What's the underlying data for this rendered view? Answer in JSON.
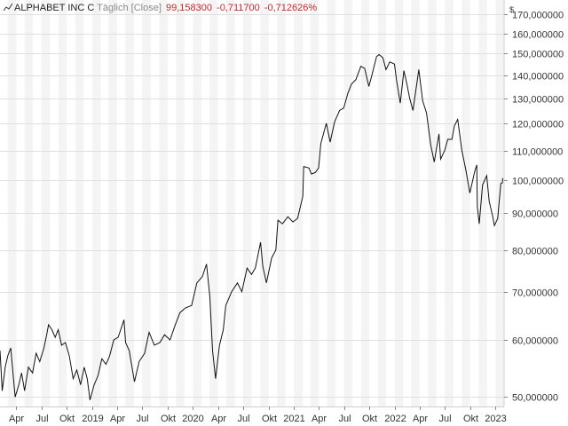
{
  "legend": {
    "instrument": "ALPHABET INC C",
    "frequency": "Täglich [Close]",
    "last_value": "99,158300",
    "change_abs": "-0,711700",
    "change_pct": "-0,712626%",
    "icon": "line-chart-icon"
  },
  "colors": {
    "line": "#111111",
    "band": "#f4f4f4",
    "grid": "#e0e0e0",
    "axis_text": "#333333",
    "value_red": "#c62828"
  },
  "chart_data": {
    "type": "line",
    "title": "",
    "xlabel": "",
    "ylabel": "$",
    "y_scale": "log",
    "ylim": [
      48.5,
      178
    ],
    "xlim": [
      "2018-02-01",
      "2023-02-01"
    ],
    "grid": true,
    "legend_position": "top-left",
    "y_ticks": [
      50,
      60,
      70,
      80,
      90,
      100,
      110,
      120,
      130,
      140,
      150,
      160,
      170
    ],
    "y_tick_labels": [
      "50,000000",
      "60,000000",
      "70,000000",
      "80,000000",
      "90,000000",
      "100,000000",
      "110,000000",
      "120,000000",
      "130,000000",
      "140,000000",
      "150,000000",
      "160,000000",
      "170,000000"
    ],
    "x_ticks": [
      {
        "date": "2018-04-01",
        "label": "Apr"
      },
      {
        "date": "2018-07-01",
        "label": "Jul"
      },
      {
        "date": "2018-10-01",
        "label": "Okt"
      },
      {
        "date": "2019-01-01",
        "label": "2019"
      },
      {
        "date": "2019-04-01",
        "label": "Apr"
      },
      {
        "date": "2019-07-01",
        "label": "Jul"
      },
      {
        "date": "2019-10-01",
        "label": "Okt"
      },
      {
        "date": "2020-01-01",
        "label": "2020"
      },
      {
        "date": "2020-04-01",
        "label": "Apr"
      },
      {
        "date": "2020-07-01",
        "label": "Jul"
      },
      {
        "date": "2020-10-01",
        "label": "Okt"
      },
      {
        "date": "2021-01-01",
        "label": "2021"
      },
      {
        "date": "2021-04-01",
        "label": "Apr"
      },
      {
        "date": "2021-07-01",
        "label": "Jul"
      },
      {
        "date": "2021-10-01",
        "label": "Okt"
      },
      {
        "date": "2022-01-01",
        "label": "2022"
      },
      {
        "date": "2022-04-01",
        "label": "Apr"
      },
      {
        "date": "2022-07-01",
        "label": "Jul"
      },
      {
        "date": "2022-10-01",
        "label": "Okt"
      },
      {
        "date": "2023-01-01",
        "label": "2023"
      }
    ],
    "shaded_months": [
      "2018-03",
      "2018-05",
      "2018-07",
      "2018-09",
      "2018-11",
      "2019-01",
      "2019-03",
      "2019-05",
      "2019-07",
      "2019-09",
      "2019-11",
      "2020-01",
      "2020-03",
      "2020-05",
      "2020-07",
      "2020-09",
      "2020-11",
      "2021-01",
      "2021-03",
      "2021-05",
      "2021-07",
      "2021-09",
      "2021-11",
      "2022-01",
      "2022-03",
      "2022-05",
      "2022-07",
      "2022-09",
      "2022-11",
      "2023-01"
    ],
    "series": [
      {
        "values": [
          [
            "2018-02-01",
            58.0
          ],
          [
            "2018-02-09",
            51.0
          ],
          [
            "2018-02-20",
            55.0
          ],
          [
            "2018-03-01",
            57.0
          ],
          [
            "2018-03-12",
            58.5
          ],
          [
            "2018-03-20",
            54.0
          ],
          [
            "2018-03-28",
            50.0
          ],
          [
            "2018-04-10",
            52.0
          ],
          [
            "2018-04-20",
            54.0
          ],
          [
            "2018-05-01",
            51.0
          ],
          [
            "2018-05-15",
            55.0
          ],
          [
            "2018-05-30",
            54.0
          ],
          [
            "2018-06-12",
            57.5
          ],
          [
            "2018-06-25",
            56.0
          ],
          [
            "2018-07-10",
            58.5
          ],
          [
            "2018-07-20",
            61.0
          ],
          [
            "2018-07-27",
            63.0
          ],
          [
            "2018-08-08",
            62.0
          ],
          [
            "2018-08-20",
            60.5
          ],
          [
            "2018-08-31",
            62.0
          ],
          [
            "2018-09-12",
            59.0
          ],
          [
            "2018-09-26",
            59.5
          ],
          [
            "2018-10-10",
            57.0
          ],
          [
            "2018-10-24",
            53.0
          ],
          [
            "2018-11-06",
            54.5
          ],
          [
            "2018-11-20",
            52.0
          ],
          [
            "2018-12-03",
            55.0
          ],
          [
            "2018-12-14",
            53.0
          ],
          [
            "2018-12-24",
            49.5
          ],
          [
            "2019-01-08",
            52.0
          ],
          [
            "2019-01-22",
            53.5
          ],
          [
            "2019-02-05",
            56.5
          ],
          [
            "2019-02-20",
            55.5
          ],
          [
            "2019-03-05",
            57.0
          ],
          [
            "2019-03-20",
            60.0
          ],
          [
            "2019-04-05",
            60.5
          ],
          [
            "2019-04-26",
            64.0
          ],
          [
            "2019-05-02",
            59.5
          ],
          [
            "2019-05-15",
            58.0
          ],
          [
            "2019-06-03",
            52.5
          ],
          [
            "2019-06-20",
            56.0
          ],
          [
            "2019-07-10",
            57.5
          ],
          [
            "2019-07-26",
            61.5
          ],
          [
            "2019-08-14",
            59.0
          ],
          [
            "2019-09-03",
            59.5
          ],
          [
            "2019-09-20",
            61.0
          ],
          [
            "2019-10-10",
            60.0
          ],
          [
            "2019-10-29",
            63.0
          ],
          [
            "2019-11-15",
            65.5
          ],
          [
            "2019-12-06",
            66.5
          ],
          [
            "2019-12-27",
            67.0
          ],
          [
            "2020-01-15",
            72.0
          ],
          [
            "2020-02-04",
            73.5
          ],
          [
            "2020-02-19",
            76.5
          ],
          [
            "2020-03-02",
            69.0
          ],
          [
            "2020-03-12",
            58.0
          ],
          [
            "2020-03-23",
            53.0
          ],
          [
            "2020-04-06",
            59.0
          ],
          [
            "2020-04-20",
            62.0
          ],
          [
            "2020-04-29",
            67.0
          ],
          [
            "2020-05-20",
            70.0
          ],
          [
            "2020-06-10",
            72.0
          ],
          [
            "2020-06-26",
            70.0
          ],
          [
            "2020-07-15",
            75.5
          ],
          [
            "2020-07-31",
            74.0
          ],
          [
            "2020-08-14",
            75.5
          ],
          [
            "2020-09-02",
            82.0
          ],
          [
            "2020-09-10",
            76.0
          ],
          [
            "2020-09-23",
            72.0
          ],
          [
            "2020-10-12",
            78.0
          ],
          [
            "2020-10-27",
            80.0
          ],
          [
            "2020-11-04",
            88.0
          ],
          [
            "2020-11-20",
            87.0
          ],
          [
            "2020-12-10",
            89.0
          ],
          [
            "2020-12-28",
            87.5
          ],
          [
            "2021-01-14",
            88.5
          ],
          [
            "2021-02-02",
            95.0
          ],
          [
            "2021-02-05",
            104.5
          ],
          [
            "2021-02-24",
            104.0
          ],
          [
            "2021-03-05",
            102.0
          ],
          [
            "2021-03-19",
            102.5
          ],
          [
            "2021-03-31",
            104.0
          ],
          [
            "2021-04-08",
            112.5
          ],
          [
            "2021-04-28",
            120.0
          ],
          [
            "2021-05-12",
            113.0
          ],
          [
            "2021-05-28",
            120.5
          ],
          [
            "2021-06-15",
            125.0
          ],
          [
            "2021-06-30",
            126.0
          ],
          [
            "2021-07-15",
            132.0
          ],
          [
            "2021-07-28",
            136.0
          ],
          [
            "2021-08-13",
            138.0
          ],
          [
            "2021-08-31",
            144.0
          ],
          [
            "2021-09-14",
            143.0
          ],
          [
            "2021-09-29",
            135.0
          ],
          [
            "2021-10-08",
            139.0
          ],
          [
            "2021-10-27",
            148.5
          ],
          [
            "2021-11-05",
            149.5
          ],
          [
            "2021-11-19",
            148.0
          ],
          [
            "2021-11-30",
            142.5
          ],
          [
            "2021-12-14",
            146.0
          ],
          [
            "2021-12-31",
            145.0
          ],
          [
            "2022-01-07",
            138.0
          ],
          [
            "2022-01-21",
            128.0
          ],
          [
            "2022-02-03",
            142.0
          ],
          [
            "2022-02-14",
            136.0
          ],
          [
            "2022-02-24",
            130.0
          ],
          [
            "2022-03-08",
            125.0
          ],
          [
            "2022-03-29",
            142.5
          ],
          [
            "2022-04-12",
            129.0
          ],
          [
            "2022-04-26",
            124.0
          ],
          [
            "2022-05-11",
            112.0
          ],
          [
            "2022-05-24",
            106.0
          ],
          [
            "2022-06-10",
            116.0
          ],
          [
            "2022-06-16",
            107.0
          ],
          [
            "2022-07-01",
            110.0
          ],
          [
            "2022-07-12",
            114.0
          ],
          [
            "2022-07-27",
            114.0
          ],
          [
            "2022-08-05",
            119.0
          ],
          [
            "2022-08-17",
            121.5
          ],
          [
            "2022-09-01",
            110.0
          ],
          [
            "2022-09-15",
            103.5
          ],
          [
            "2022-09-30",
            96.0
          ],
          [
            "2022-10-18",
            103.0
          ],
          [
            "2022-10-25",
            105.0
          ],
          [
            "2022-10-27",
            92.0
          ],
          [
            "2022-11-03",
            87.0
          ],
          [
            "2022-11-15",
            98.5
          ],
          [
            "2022-11-30",
            101.5
          ],
          [
            "2022-12-09",
            93.5
          ],
          [
            "2022-12-22",
            89.0
          ],
          [
            "2022-12-28",
            86.5
          ],
          [
            "2023-01-09",
            88.5
          ],
          [
            "2023-01-20",
            99.0
          ],
          [
            "2023-01-26",
            99.2
          ],
          [
            "2023-01-27",
            100.7
          ]
        ]
      }
    ]
  }
}
